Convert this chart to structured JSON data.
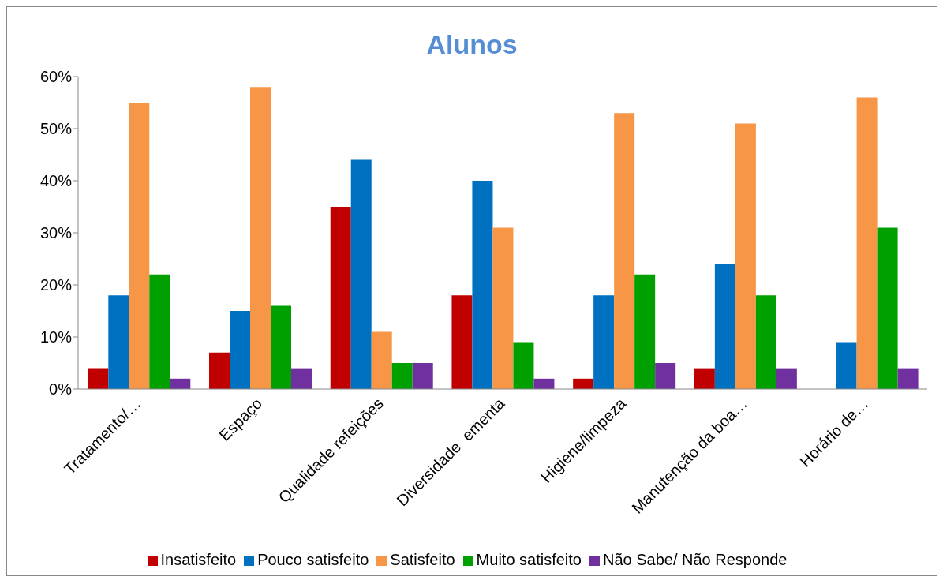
{
  "chart_data": {
    "type": "bar",
    "title": "Alunos",
    "categories": [
      "Tratamento/…",
      "Espaço",
      "Qualidade refeições",
      "Diversidade  ementa",
      "Higiene/limpeza",
      "Manutenção da boa…",
      "Horário de…"
    ],
    "series": [
      {
        "name": "Insatisfeito",
        "color": "#c00000",
        "values": [
          4,
          7,
          35,
          18,
          2,
          4,
          0
        ]
      },
      {
        "name": "Pouco satisfeito",
        "color": "#0070c0",
        "values": [
          18,
          15,
          44,
          40,
          18,
          24,
          9
        ]
      },
      {
        "name": "Satisfeito",
        "color": "#f79646",
        "values": [
          55,
          58,
          11,
          31,
          53,
          51,
          56
        ]
      },
      {
        "name": "Muito satisfeito",
        "color": "#00a000",
        "values": [
          22,
          16,
          5,
          9,
          22,
          18,
          31
        ]
      },
      {
        "name": "Não Sabe/ Não Responde",
        "color": "#7030a0",
        "values": [
          2,
          4,
          5,
          2,
          5,
          4,
          4
        ]
      }
    ],
    "ylim": [
      0,
      60
    ],
    "yticks": [
      {
        "value": 0,
        "label": "0%"
      },
      {
        "value": 10,
        "label": "10%"
      },
      {
        "value": 20,
        "label": "20%"
      },
      {
        "value": 30,
        "label": "30%"
      },
      {
        "value": 40,
        "label": "40%"
      },
      {
        "value": 50,
        "label": "50%"
      },
      {
        "value": 60,
        "label": "60%"
      }
    ],
    "grid": false,
    "legend": "bottom"
  }
}
